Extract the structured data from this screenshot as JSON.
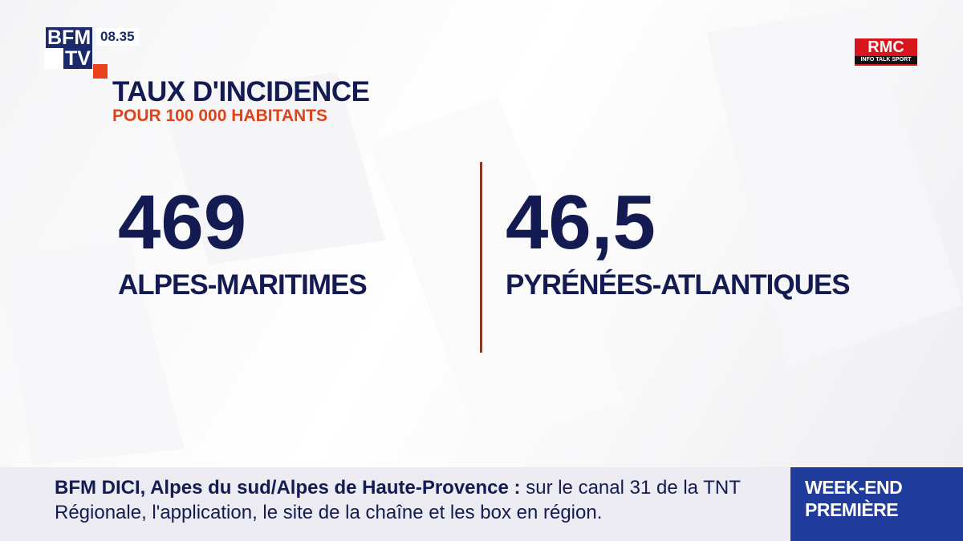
{
  "logo": {
    "top": "BFM",
    "bottom": "TV"
  },
  "time": "08.35",
  "partner": {
    "name": "RMC",
    "tagline": "INFO TALK SPORT"
  },
  "header": {
    "title": "TAUX D'INCIDENCE",
    "subtitle": "POUR 100 000 HABITANTS"
  },
  "stats": [
    {
      "value": "469",
      "label": "ALPES-MARITIMES"
    },
    {
      "value": "46,5",
      "label": "PYRÉNÉES-ATLANTIQUES"
    }
  ],
  "ticker": {
    "lead": "BFM DICI, Alpes du sud/Alpes de Haute-Provence :",
    "text": "sur le canal 31 de la TNT Régionale, l'application, le site de la chaîne et les box en région."
  },
  "program": {
    "line1": "WEEK-END",
    "line2": "PREMIÈRE"
  }
}
